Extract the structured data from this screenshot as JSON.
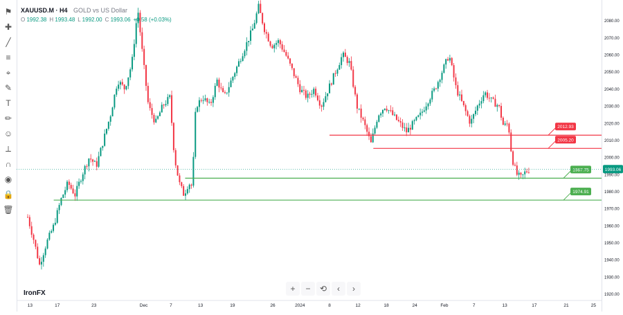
{
  "legend": {
    "symbol": "XAUUSD.M · H4",
    "description": "GOLD vs US Dollar",
    "ohlc": [
      {
        "label": "O",
        "value": "1992.38"
      },
      {
        "label": "H",
        "value": "1993.48"
      },
      {
        "label": "L",
        "value": "1992.00"
      },
      {
        "label": "C",
        "value": "1993.06"
      }
    ],
    "change": "+0.58 (+0.03%)"
  },
  "watermark": "IronFX",
  "nav_controls": [
    "+",
    "−",
    "⟲",
    "‹",
    "›"
  ],
  "toolbar_icons": [
    "flag-icon",
    "crosshair-icon",
    "trend-line-icon",
    "fib-icon",
    "pattern-icon",
    "brush-icon",
    "text-icon",
    "pencil-icon",
    "emoji-icon",
    "ruler-icon",
    "magnet-icon",
    "eye-icon",
    "lock-icon",
    "trash-icon"
  ],
  "colors": {
    "up": "#089981",
    "down": "#f23645",
    "resistance": "#f23645",
    "support": "#4caf50",
    "current": "#089981"
  },
  "chart_data": {
    "type": "candlestick",
    "symbol": "XAUUSD.M",
    "timeframe": "H4",
    "ylim": [
      1917,
      2090
    ],
    "y_ticks": [
      1920,
      1930,
      1940,
      1950,
      1960,
      1970,
      1980,
      1990,
      2000,
      2010,
      2020,
      2030,
      2040,
      2050,
      2060,
      2070,
      2080
    ],
    "x_ticks": [
      "13",
      "17",
      "23",
      "Dec",
      "7",
      "13",
      "19",
      "26",
      "2024",
      "8",
      "12",
      "18",
      "24",
      "Feb",
      "7",
      "13",
      "17",
      "21",
      "25"
    ],
    "close_path": [
      [
        0,
        1965
      ],
      [
        0.5,
        1952
      ],
      [
        1,
        1937
      ],
      [
        1.6,
        1950
      ],
      [
        2.2,
        1960
      ],
      [
        2.8,
        1975
      ],
      [
        3.4,
        1985
      ],
      [
        4,
        1978
      ],
      [
        4.6,
        1990
      ],
      [
        5.2,
        2000
      ],
      [
        5.8,
        1995
      ],
      [
        6.4,
        2010
      ],
      [
        7,
        2025
      ],
      [
        7.6,
        2045
      ],
      [
        8.2,
        2040
      ],
      [
        8.8,
        2055
      ],
      [
        9.3,
        2087
      ],
      [
        9.7,
        2060
      ],
      [
        10.2,
        2030
      ],
      [
        10.8,
        2020
      ],
      [
        11.4,
        2030
      ],
      [
        12,
        2035
      ],
      [
        12.4,
        2000
      ],
      [
        12.8,
        1985
      ],
      [
        13.2,
        1978
      ],
      [
        13.6,
        1985
      ],
      [
        13.9,
        1983
      ],
      [
        14.2,
        2030
      ],
      [
        14.8,
        2035
      ],
      [
        15.4,
        2030
      ],
      [
        16,
        2045
      ],
      [
        16.6,
        2035
      ],
      [
        17.2,
        2045
      ],
      [
        17.8,
        2055
      ],
      [
        18.4,
        2065
      ],
      [
        19,
        2075
      ],
      [
        19.5,
        2088
      ],
      [
        20,
        2075
      ],
      [
        20.6,
        2065
      ],
      [
        21.2,
        2068
      ],
      [
        21.8,
        2060
      ],
      [
        22.4,
        2050
      ],
      [
        23,
        2040
      ],
      [
        23.6,
        2035
      ],
      [
        24.2,
        2040
      ],
      [
        24.8,
        2030
      ],
      [
        25.4,
        2040
      ],
      [
        26,
        2050
      ],
      [
        26.6,
        2060
      ],
      [
        27.2,
        2055
      ],
      [
        27.8,
        2030
      ],
      [
        28.4,
        2020
      ],
      [
        29,
        2008
      ],
      [
        29.6,
        2025
      ],
      [
        30.2,
        2030
      ],
      [
        30.8,
        2025
      ],
      [
        31.4,
        2020
      ],
      [
        32,
        2015
      ],
      [
        32.6,
        2020
      ],
      [
        33.2,
        2025
      ],
      [
        33.8,
        2033
      ],
      [
        34.4,
        2040
      ],
      [
        35,
        2050
      ],
      [
        35.6,
        2060
      ],
      [
        36.2,
        2040
      ],
      [
        36.8,
        2030
      ],
      [
        37.4,
        2020
      ],
      [
        38,
        2030
      ],
      [
        38.6,
        2038
      ],
      [
        39.2,
        2033
      ],
      [
        39.8,
        2030
      ],
      [
        40.2,
        2018
      ],
      [
        40.6,
        2020
      ],
      [
        40.9,
        2000
      ],
      [
        41.3,
        1990
      ],
      [
        41.7,
        1988
      ],
      [
        42,
        1991
      ],
      [
        42.4,
        1993
      ]
    ],
    "levels": [
      {
        "label": "2012.93",
        "value": 2012.93,
        "kind": "resistance"
      },
      {
        "label": "2005.20",
        "value": 2005.2,
        "kind": "resistance"
      },
      {
        "label": "1987.75",
        "value": 1987.75,
        "kind": "support"
      },
      {
        "label": "1974.91",
        "value": 1974.91,
        "kind": "support"
      }
    ],
    "current_price": {
      "label": "1993.06",
      "value": 1993.06
    },
    "grid": false
  }
}
